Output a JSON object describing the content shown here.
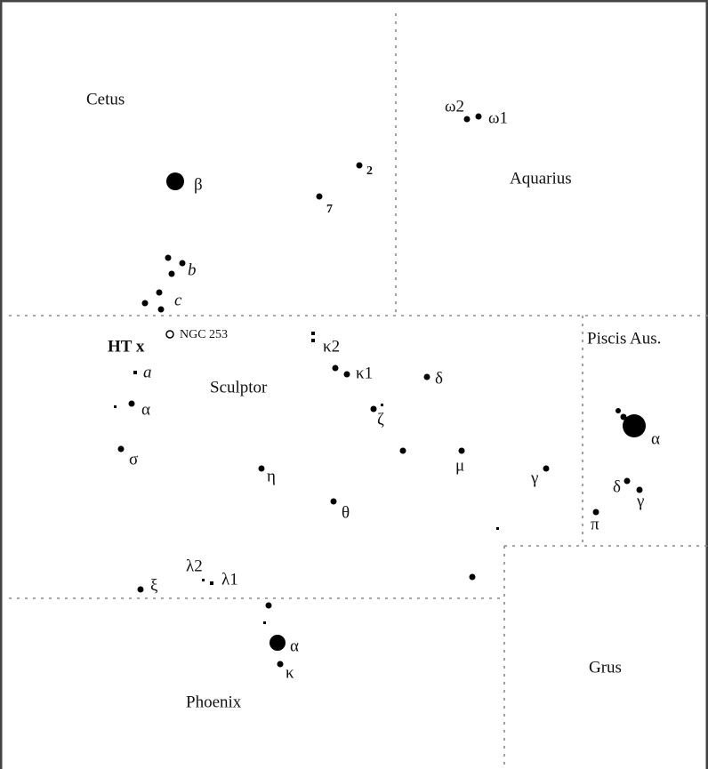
{
  "regions": [
    "Cetus",
    "Aquarius",
    "Sculptor",
    "Piscis Aus.",
    "Phoenix",
    "Grus"
  ],
  "objects": {
    "ht": "HT x",
    "ngc": "NGC 253"
  },
  "stars": [
    "ω2",
    "ω1",
    "2",
    "7",
    "β",
    "b",
    "c",
    "a",
    "α",
    "σ",
    "κ2",
    "κ1",
    "δ",
    "ζ",
    "μ",
    "γ",
    "η",
    "θ",
    "ξ",
    "λ2",
    "λ1",
    "α",
    "κ",
    "α",
    "δ",
    "γ",
    "π"
  ]
}
